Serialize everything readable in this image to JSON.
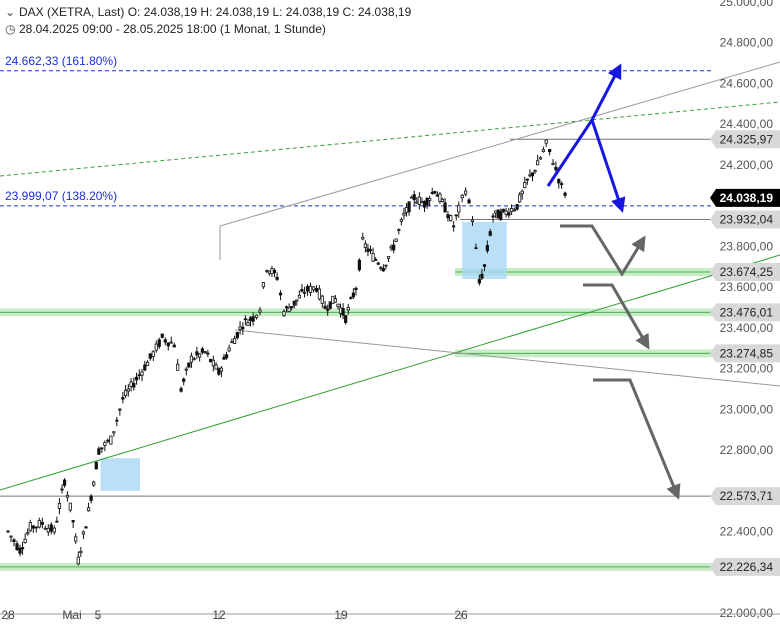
{
  "header": {
    "line1": "DAX (XETRA, Last)  O: 24.038,19  H: 24.038,19  L: 24.038,19  C: 24.038,19",
    "line2": "28.04.2025 09:00 - 28.05.2025 18:00   (1 Monat, 1 Stunde)",
    "icon1": "chevron-down-icon",
    "icon2": "clock-icon"
  },
  "fib_labels": {
    "upper": "24.662,33 (161.80%)",
    "lower": "23.999,07 (138.20%)"
  },
  "chart_data": {
    "type": "candlestick",
    "y_axis": {
      "min": 22000,
      "max": 25000,
      "side": "right",
      "ticks": [
        {
          "value": 25000,
          "label": "25.000,00"
        },
        {
          "value": 24800,
          "label": "24.800,00"
        },
        {
          "value": 24600,
          "label": "24.600,00"
        },
        {
          "value": 24400,
          "label": "24.400,00"
        },
        {
          "value": 24200,
          "label": "24.200,00"
        },
        {
          "value": 23800,
          "label": "23.800,00"
        },
        {
          "value": 23600,
          "label": "23.600,00"
        },
        {
          "value": 23400,
          "label": "23.400,00"
        },
        {
          "value": 23200,
          "label": "23.200,00"
        },
        {
          "value": 23000,
          "label": "23.000,00"
        },
        {
          "value": 22800,
          "label": "22.800,00"
        },
        {
          "value": 22400,
          "label": "22.400,00"
        },
        {
          "value": 22000,
          "label": "22.000,00"
        }
      ]
    },
    "x_axis": {
      "ticks": [
        {
          "label": "28",
          "day": -3
        },
        {
          "label": "Mai",
          "day": 0
        },
        {
          "label": "5",
          "day": 4
        },
        {
          "label": "12",
          "day": 11
        },
        {
          "label": "19",
          "day": 18
        },
        {
          "label": "26",
          "day": 25
        }
      ]
    },
    "price_levels": [
      {
        "value": 24325.97,
        "label": "24.325,97",
        "style": "gray-line"
      },
      {
        "value": 24038.19,
        "label": "24.038,19",
        "style": "current"
      },
      {
        "value": 23932.04,
        "label": "23.932,04",
        "style": "gray-line"
      },
      {
        "value": 23674.25,
        "label": "23.674,25",
        "style": "green-band"
      },
      {
        "value": 23476.01,
        "label": "23.476,01",
        "style": "green-band"
      },
      {
        "value": 23274.85,
        "label": "23.274,85",
        "style": "green-band"
      },
      {
        "value": 22573.71,
        "label": "22.573,71",
        "style": "gray-line"
      },
      {
        "value": 22226.34,
        "label": "22.226,34",
        "style": "green-band"
      }
    ],
    "fib_levels": [
      {
        "value": 24662.33,
        "percent": "161.80%"
      },
      {
        "value": 23999.07,
        "percent": "138.20%"
      }
    ],
    "gaps": [
      {
        "day_start": 1.9,
        "day_end": 4.2,
        "low": 22600,
        "high": 22760
      },
      {
        "day_start": 23.0,
        "day_end": 25.6,
        "low": 23640,
        "high": 23920
      }
    ],
    "path": [
      {
        "day": -3.5,
        "price": 22400
      },
      {
        "day": -2.8,
        "price": 22310
      },
      {
        "day": -2.2,
        "price": 22420
      },
      {
        "day": -1.5,
        "price": 22440
      },
      {
        "day": -0.8,
        "price": 22400
      },
      {
        "day": -0.2,
        "price": 22650
      },
      {
        "day": 0.3,
        "price": 22450
      },
      {
        "day": 0.6,
        "price": 22260
      },
      {
        "day": 1.2,
        "price": 22500
      },
      {
        "day": 1.8,
        "price": 22800
      },
      {
        "day": 2.5,
        "price": 22850
      },
      {
        "day": 3.2,
        "price": 23050
      },
      {
        "day": 4.0,
        "price": 23150
      },
      {
        "day": 4.8,
        "price": 23250
      },
      {
        "day": 5.5,
        "price": 23350
      },
      {
        "day": 6.2,
        "price": 23320
      },
      {
        "day": 6.6,
        "price": 23100
      },
      {
        "day": 7.2,
        "price": 23250
      },
      {
        "day": 8.0,
        "price": 23280
      },
      {
        "day": 8.8,
        "price": 23180
      },
      {
        "day": 9.4,
        "price": 23300
      },
      {
        "day": 10.2,
        "price": 23420
      },
      {
        "day": 10.8,
        "price": 23450
      },
      {
        "day": 11.2,
        "price": 23500
      },
      {
        "day": 11.6,
        "price": 23700
      },
      {
        "day": 12.2,
        "price": 23650
      },
      {
        "day": 12.6,
        "price": 23480
      },
      {
        "day": 13.2,
        "price": 23520
      },
      {
        "day": 13.8,
        "price": 23580
      },
      {
        "day": 14.5,
        "price": 23600
      },
      {
        "day": 15.0,
        "price": 23500
      },
      {
        "day": 15.6,
        "price": 23540
      },
      {
        "day": 16.2,
        "price": 23450
      },
      {
        "day": 16.8,
        "price": 23600
      },
      {
        "day": 17.2,
        "price": 23820
      },
      {
        "day": 17.8,
        "price": 23750
      },
      {
        "day": 18.4,
        "price": 23700
      },
      {
        "day": 19.0,
        "price": 23800
      },
      {
        "day": 19.6,
        "price": 23950
      },
      {
        "day": 20.2,
        "price": 24040
      },
      {
        "day": 20.8,
        "price": 24010
      },
      {
        "day": 21.4,
        "price": 24080
      },
      {
        "day": 22.0,
        "price": 23990
      },
      {
        "day": 22.5,
        "price": 23900
      },
      {
        "day": 22.8,
        "price": 23980
      },
      {
        "day": 23.2,
        "price": 24080
      },
      {
        "day": 23.6,
        "price": 23940
      },
      {
        "day": 24.0,
        "price": 23620
      },
      {
        "day": 24.3,
        "price": 23700
      },
      {
        "day": 24.8,
        "price": 23950
      },
      {
        "day": 25.4,
        "price": 23960
      },
      {
        "day": 26.2,
        "price": 24000
      },
      {
        "day": 26.8,
        "price": 24120
      },
      {
        "day": 27.4,
        "price": 24200
      },
      {
        "day": 27.9,
        "price": 24300
      },
      {
        "day": 28.3,
        "price": 24220
      },
      {
        "day": 28.8,
        "price": 24090
      },
      {
        "day": 29.2,
        "price": 24038
      }
    ]
  }
}
